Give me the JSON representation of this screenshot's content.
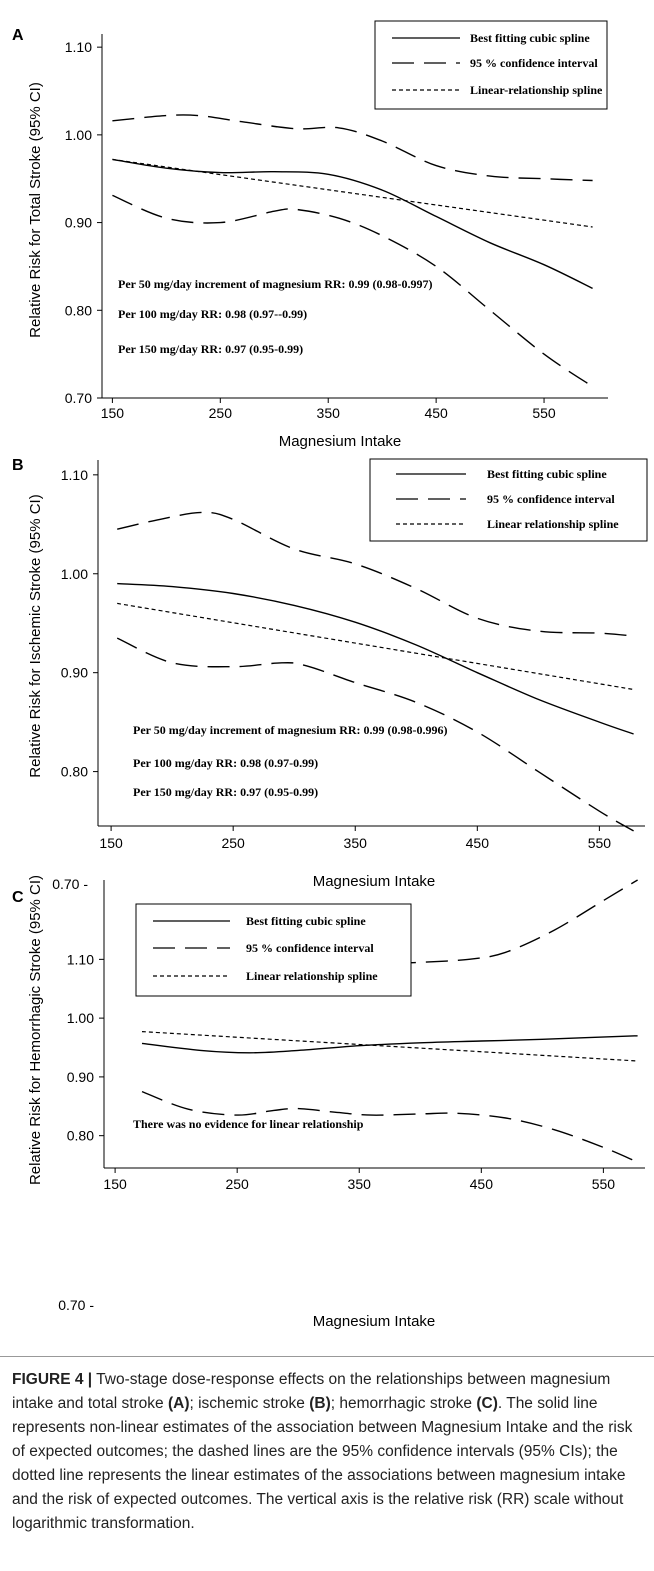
{
  "chart_data": [
    {
      "panel": "A",
      "type": "line",
      "xlabel": "Magnesium Intake",
      "ylabel": "Relative Risk for Total Stroke (95% CI)",
      "xticks": [
        "150",
        "250",
        "350",
        "450",
        "550"
      ],
      "yticks": [
        {
          "value": 0.7,
          "label": "0.70"
        },
        {
          "value": 0.8,
          "label": "0.80"
        },
        {
          "value": 0.9,
          "label": "0.90"
        },
        {
          "value": 1.0,
          "label": "1.00"
        },
        {
          "value": 1.1,
          "label": "1.10"
        }
      ],
      "xlim": [
        145,
        600
      ],
      "ylim": [
        0.7,
        1.115
      ],
      "legend": [
        "Best fitting cubic spline",
        "95 % confidence interval",
        "Linear-relationship spline"
      ],
      "annotations": [
        "Per 50 mg/day increment of magnesium  RR: 0.99 (0.98-0.997)",
        "Per 100 mg/day RR: 0.98 (0.97--0.99)",
        "Per 150 mg/day RR: 0.97 (0.95-0.99)"
      ],
      "series": [
        {
          "name": "Best fitting cubic spline",
          "style": "solid",
          "x": [
            150,
            200,
            250,
            300,
            350,
            400,
            450,
            500,
            550,
            595
          ],
          "y": [
            0.972,
            0.962,
            0.957,
            0.958,
            0.955,
            0.937,
            0.907,
            0.877,
            0.852,
            0.825
          ]
        },
        {
          "name": "95 % confidence interval",
          "style": "dashed",
          "x": [
            150,
            200,
            230,
            270,
            320,
            360,
            400,
            450,
            500,
            550,
            595
          ],
          "y": [
            1.016,
            1.022,
            1.022,
            1.015,
            1.007,
            1.008,
            0.993,
            0.965,
            0.953,
            0.95,
            0.948
          ]
        },
        {
          "name": "95 % confidence interval",
          "style": "dashed",
          "x": [
            150,
            200,
            250,
            300,
            320,
            360,
            400,
            450,
            500,
            550,
            595
          ],
          "y": [
            0.931,
            0.905,
            0.9,
            0.913,
            0.915,
            0.905,
            0.885,
            0.85,
            0.8,
            0.75,
            0.713
          ]
        },
        {
          "name": "Linear-relationship spline",
          "style": "dotted",
          "x": [
            150,
            595
          ],
          "y": [
            0.972,
            0.895
          ]
        }
      ]
    },
    {
      "panel": "B",
      "type": "line",
      "xlabel": "Magnesium Intake",
      "ylabel": "Relative Risk for Ischemic Stroke (95% CI)",
      "xticks": [
        "150",
        "250",
        "350",
        "450",
        "550"
      ],
      "yticks": [
        {
          "value": 0.7,
          "label": "0.70"
        },
        {
          "value": 0.8,
          "label": "0.80"
        },
        {
          "value": 0.9,
          "label": "0.90"
        },
        {
          "value": 1.0,
          "label": "1.00"
        },
        {
          "value": 1.1,
          "label": "1.10"
        }
      ],
      "xlim": [
        145,
        580
      ],
      "ylim": [
        0.745,
        1.115
      ],
      "legend": [
        "Best fitting cubic spline",
        "95 % confidence interval",
        "Linear relationship spline"
      ],
      "annotations": [
        "Per 50 mg/day increment of magnesium RR: 0.99 (0.98-0.996)",
        "Per 100 mg/day RR: 0.98 (0.97-0.99)",
        "Per 150 mg/day RR: 0.97 (0.95-0.99)"
      ],
      "series": [
        {
          "name": "Best fitting cubic spline",
          "style": "solid",
          "x": [
            155,
            200,
            250,
            300,
            350,
            400,
            450,
            500,
            550,
            578
          ],
          "y": [
            0.99,
            0.987,
            0.98,
            0.968,
            0.951,
            0.928,
            0.9,
            0.873,
            0.85,
            0.838
          ]
        },
        {
          "name": "95 % confidence interval",
          "style": "dashed",
          "x": [
            155,
            190,
            225,
            250,
            300,
            350,
            400,
            450,
            500,
            550,
            578
          ],
          "y": [
            1.045,
            1.055,
            1.062,
            1.055,
            1.025,
            1.01,
            0.985,
            0.955,
            0.942,
            0.94,
            0.937
          ]
        },
        {
          "name": "95 % confidence interval",
          "style": "dashed",
          "x": [
            155,
            200,
            250,
            290,
            310,
            350,
            400,
            450,
            500,
            550,
            578
          ],
          "y": [
            0.935,
            0.91,
            0.906,
            0.91,
            0.907,
            0.89,
            0.87,
            0.84,
            0.8,
            0.76,
            0.74
          ]
        },
        {
          "name": "Linear relationship spline",
          "style": "dotted",
          "x": [
            155,
            578
          ],
          "y": [
            0.97,
            0.883
          ]
        }
      ]
    },
    {
      "panel": "C",
      "type": "line",
      "xlabel": "Magnesium Intake",
      "ylabel": "Relative Risk for Hemorrhagic Stroke (95% CI)",
      "xticks": [
        "150",
        "250",
        "350",
        "450",
        "550"
      ],
      "yticks": [
        {
          "value": 0.7,
          "label": "0.70"
        },
        {
          "value": 0.8,
          "label": "0.80"
        },
        {
          "value": 0.9,
          "label": "0.90"
        },
        {
          "value": 1.0,
          "label": "1.00"
        },
        {
          "value": 1.1,
          "label": "1.10"
        }
      ],
      "xlim": [
        145,
        580
      ],
      "ylim": [
        0.745,
        1.235
      ],
      "legend": [
        "Best fitting cubic spline",
        "95 % confidence  interval",
        "Linear relationship spline"
      ],
      "annotations": [
        "There was no evidence for linear relationship"
      ],
      "series": [
        {
          "name": "Best fitting cubic spline",
          "style": "solid",
          "x": [
            172,
            220,
            260,
            300,
            350,
            400,
            450,
            500,
            578
          ],
          "y": [
            0.957,
            0.945,
            0.941,
            0.945,
            0.953,
            0.958,
            0.961,
            0.964,
            0.97
          ]
        },
        {
          "name": "95 % confidence  interval",
          "style": "dashed",
          "x": [
            172,
            210,
            240,
            270,
            290,
            310,
            350,
            380,
            400,
            440,
            470,
            510,
            550,
            578
          ],
          "y": [
            1.047,
            1.055,
            1.06,
            1.055,
            1.05,
            1.058,
            1.085,
            1.093,
            1.095,
            1.1,
            1.112,
            1.15,
            1.2,
            1.235
          ]
        },
        {
          "name": "95 % confidence  interval",
          "style": "dashed",
          "x": [
            172,
            210,
            250,
            280,
            300,
            330,
            360,
            400,
            430,
            470,
            510,
            550,
            578
          ],
          "y": [
            0.875,
            0.845,
            0.835,
            0.843,
            0.846,
            0.84,
            0.835,
            0.837,
            0.838,
            0.83,
            0.81,
            0.78,
            0.755
          ]
        },
        {
          "name": "Linear relationship spline",
          "style": "dotted",
          "x": [
            172,
            578
          ],
          "y": [
            0.977,
            0.927
          ]
        }
      ]
    }
  ],
  "caption": {
    "figure_label": "FIGURE 4 |",
    "intro": " Two-stage dose-response effects on the relationships between magnesium intake and total stroke ",
    "a": "(A)",
    "mid1": "; ischemic stroke ",
    "b": "(B)",
    "mid2": "; hemorrhagic stroke ",
    "c": "(C)",
    "rest": ". The solid line represents non-linear estimates of the association between Magnesium Intake and the risk of expected outcomes; the dashed lines are the 95% confidence intervals (95% CIs); the dotted line represents the linear estimates of the associations between magnesium intake and the risk of expected outcomes. The vertical axis is the relative risk (RR) scale without logarithmic transformation."
  }
}
